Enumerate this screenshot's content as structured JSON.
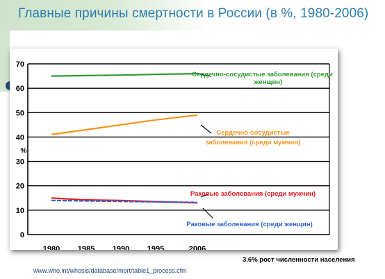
{
  "slide": {
    "title": "Главные причины смертности в России (в %, 1980-2006)",
    "footnote": "3.6% рост численности населения",
    "source": "www.who.int/whosis/database/mort/table1_process.cfm"
  },
  "chart_data": {
    "type": "line",
    "x": [
      1980,
      1985,
      1990,
      1995,
      2006
    ],
    "xlabel": "",
    "ylabel": "%",
    "ylim": [
      0,
      70
    ],
    "yticks": [
      "0",
      "10",
      "20",
      "30",
      "40",
      "50",
      "60",
      "70"
    ],
    "grid": true,
    "series": [
      {
        "name": "Сердечно-сосудистые заболевания (среди женщин)",
        "label_lines": [
          "Сердечно-сосудистые заболевания (среди",
          "женщин)"
        ],
        "color": "#2f9a2f",
        "values": [
          65,
          65.2,
          65.4,
          65.7,
          66
        ]
      },
      {
        "name": "Сердечно-сосудистые заболевания (среди мужчин)",
        "label_lines": [
          "Сердечно-сосудистые",
          "заболевания (среди мужчин)"
        ],
        "color": "#f7941d",
        "values": [
          41,
          43,
          45,
          47,
          49
        ]
      },
      {
        "name": "Раковые заболевания (среди мужчин)",
        "label_lines": [
          "Раковые заболевания (среди мужчин)"
        ],
        "color": "#e8191f",
        "values": [
          15,
          14.2,
          14,
          13.5,
          13
        ]
      },
      {
        "name": "Раковые заболевания (среди женщин)",
        "label_lines": [
          "Раковые заболевания (среди женщин)"
        ],
        "color": "#2e63c9",
        "values": [
          14,
          13.8,
          13.6,
          13.4,
          13.2
        ]
      }
    ]
  }
}
